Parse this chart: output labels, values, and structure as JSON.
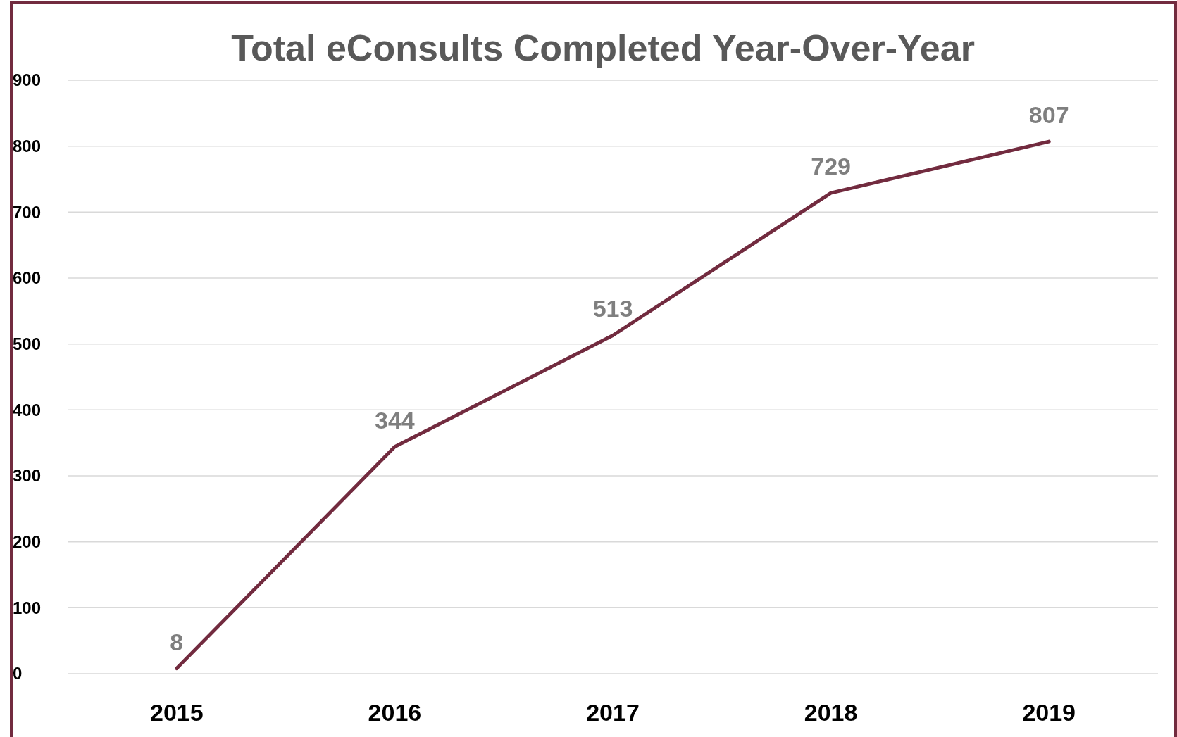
{
  "chart_data": {
    "type": "line",
    "title": "Total eConsults Completed Year-Over-Year",
    "categories": [
      "2015",
      "2016",
      "2017",
      "2018",
      "2019"
    ],
    "series": [
      {
        "color": "#722b3f",
        "values": [
          8,
          344,
          513,
          729,
          807
        ]
      }
    ],
    "ylim": [
      0,
      900
    ],
    "yticks": [
      0,
      100,
      200,
      300,
      400,
      500,
      600,
      700,
      800,
      900
    ],
    "grid": "y",
    "data_labels": true
  }
}
